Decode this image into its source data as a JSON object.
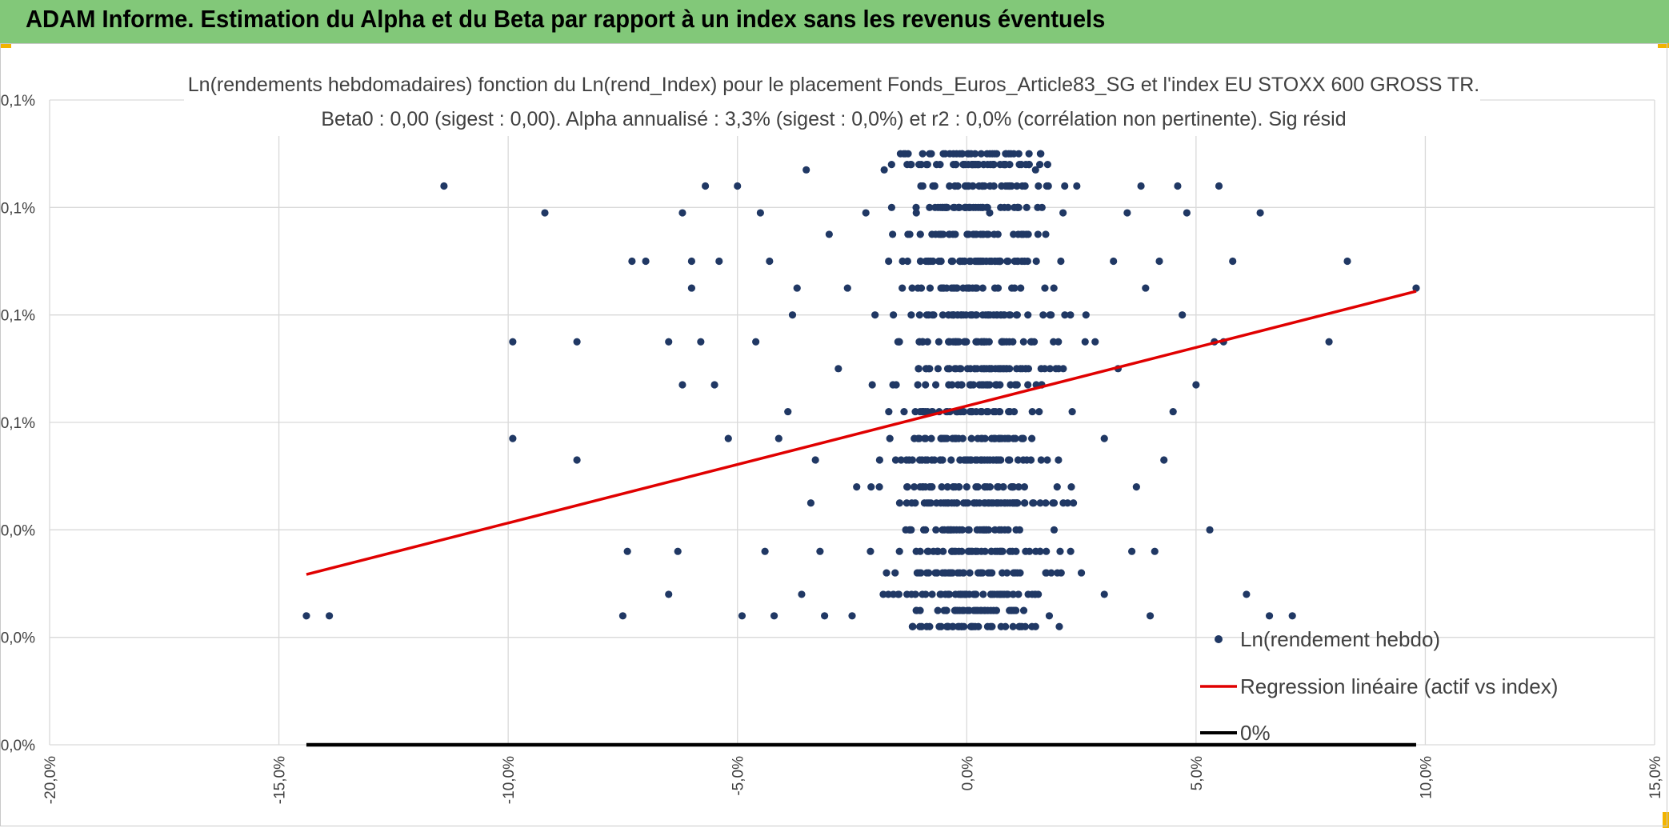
{
  "header": {
    "title": "ADAM Informe. Estimation du Alpha et du Beta par rapport à un index sans les revenus éventuels"
  },
  "colors": {
    "header_bg": "#82c879",
    "accent_corner": "#f2b400",
    "points": "#203864",
    "regression": "#e00000",
    "zero_line": "#000000"
  },
  "chart_data": {
    "type": "scatter",
    "title": "Ln(rendements hebdomadaires) fonction du Ln(rend_Index) pour le placement Fonds_Euros_Article83_SG et l'index EU STOXX 600 GROSS TR.",
    "subtitle": "Beta0 : 0,00 (sigest : 0,00). Alpha annualisé : 3,3% (sigest : 0,0%) et r2 : 0,0% (corrélation non pertinente). Sig résid",
    "xlim": [
      -0.2,
      0.15
    ],
    "ylim": [
      0.0,
      0.0012
    ],
    "x_ticks": [
      "-20,0%",
      "-15,0%",
      "-10,0%",
      "-5,0%",
      "0,0%",
      "5,0%",
      "10,0%",
      "15,0%"
    ],
    "y_ticks": [
      "0,0%",
      "0,0%",
      "0,0%",
      "0,1%",
      "0,1%",
      "0,1%",
      "0,1%"
    ],
    "grid": true,
    "legend_position": "bottom-right",
    "legend": [
      "Ln(rendement hebdo)",
      "Regression linéaire (actif vs index)",
      "0%"
    ],
    "series": [
      {
        "name": "Ln(rendement hebdo)",
        "kind": "scatter",
        "levels": [
          0.00022,
          0.00025,
          0.00028,
          0.00032,
          0.00036,
          0.0004,
          0.00045,
          0.00048,
          0.00053,
          0.00057,
          0.00062,
          0.00067,
          0.0007,
          0.00075,
          0.0008,
          0.00085,
          0.0009,
          0.00095,
          0.001,
          0.00104,
          0.00108,
          0.0011
        ],
        "points": [
          [
            -0.144,
            0.00024
          ],
          [
            -0.139,
            0.00024
          ],
          [
            -0.114,
            0.00104
          ],
          [
            -0.092,
            0.00099
          ],
          [
            -0.099,
            0.00075
          ],
          [
            -0.099,
            0.00057
          ],
          [
            -0.085,
            0.00075
          ],
          [
            -0.085,
            0.00053
          ],
          [
            -0.075,
            0.00024
          ],
          [
            -0.074,
            0.00036
          ],
          [
            -0.073,
            0.0009
          ],
          [
            -0.07,
            0.0009
          ],
          [
            -0.065,
            0.00028
          ],
          [
            -0.065,
            0.00075
          ],
          [
            -0.063,
            0.00036
          ],
          [
            -0.062,
            0.00067
          ],
          [
            -0.062,
            0.00099
          ],
          [
            -0.06,
            0.0009
          ],
          [
            -0.06,
            0.00085
          ],
          [
            -0.058,
            0.00075
          ],
          [
            -0.057,
            0.00104
          ],
          [
            -0.055,
            0.00067
          ],
          [
            -0.054,
            0.0009
          ],
          [
            -0.052,
            0.00057
          ],
          [
            -0.05,
            0.00104
          ],
          [
            -0.049,
            0.00024
          ],
          [
            -0.046,
            0.00075
          ],
          [
            -0.045,
            0.00099
          ],
          [
            -0.044,
            0.00036
          ],
          [
            -0.043,
            0.0009
          ],
          [
            -0.042,
            0.00024
          ],
          [
            -0.041,
            0.00057
          ],
          [
            -0.039,
            0.00062
          ],
          [
            -0.038,
            0.0008
          ],
          [
            -0.037,
            0.00085
          ],
          [
            -0.036,
            0.00028
          ],
          [
            -0.035,
            0.00107
          ],
          [
            -0.034,
            0.00045
          ],
          [
            -0.033,
            0.00053
          ],
          [
            -0.032,
            0.00036
          ],
          [
            -0.031,
            0.00024
          ],
          [
            -0.03,
            0.00095
          ],
          [
            -0.028,
            0.0007
          ],
          [
            -0.026,
            0.00085
          ],
          [
            -0.025,
            0.00024
          ],
          [
            -0.024,
            0.00048
          ],
          [
            -0.022,
            0.00099
          ],
          [
            -0.021,
            0.00036
          ],
          [
            -0.02,
            0.0008
          ],
          [
            -0.019,
            0.00053
          ],
          [
            -0.018,
            0.00107
          ],
          [
            -0.017,
            0.00062
          ],
          [
            -0.016,
            0.00028
          ],
          [
            -0.015,
            0.00075
          ],
          [
            -0.014,
            0.0009
          ],
          [
            -0.012,
            0.00045
          ],
          [
            -0.011,
            0.00099
          ],
          [
            -0.01,
            0.00032
          ],
          [
            -0.009,
            0.00067
          ],
          [
            -0.008,
            0.00085
          ],
          [
            -0.007,
            0.00104
          ],
          [
            -0.006,
            0.00022
          ],
          [
            -0.005,
            0.00057
          ],
          [
            -0.004,
            0.0004
          ],
          [
            -0.003,
            0.00095
          ],
          [
            -0.002,
            0.00075
          ],
          [
            -0.001,
            0.0011
          ],
          [
            0.0,
            0.00048
          ],
          [
            0.001,
            0.00062
          ],
          [
            0.002,
            0.00085
          ],
          [
            0.003,
            0.0009
          ],
          [
            0.004,
            0.00036
          ],
          [
            0.005,
            0.00099
          ],
          [
            0.006,
            0.00028
          ],
          [
            0.007,
            0.00053
          ],
          [
            0.008,
            0.0008
          ],
          [
            0.009,
            0.00104
          ],
          [
            0.01,
            0.00045
          ],
          [
            0.011,
            0.00067
          ],
          [
            0.012,
            0.00022
          ],
          [
            0.013,
            0.00095
          ],
          [
            0.014,
            0.00075
          ],
          [
            0.015,
            0.00107
          ],
          [
            0.016,
            0.00036
          ],
          [
            0.017,
            0.0007
          ],
          [
            0.018,
            0.00024
          ],
          [
            0.019,
            0.00085
          ],
          [
            0.02,
            0.00053
          ],
          [
            0.021,
            0.00099
          ],
          [
            0.022,
            0.00045
          ],
          [
            0.023,
            0.00062
          ],
          [
            0.024,
            0.00104
          ],
          [
            0.025,
            0.00032
          ],
          [
            0.026,
            0.0008
          ],
          [
            0.028,
            0.00075
          ],
          [
            0.03,
            0.00028
          ],
          [
            0.03,
            0.00057
          ],
          [
            0.032,
            0.0009
          ],
          [
            0.033,
            0.0007
          ],
          [
            0.035,
            0.00099
          ],
          [
            0.036,
            0.00036
          ],
          [
            0.037,
            0.00048
          ],
          [
            0.038,
            0.00104
          ],
          [
            0.039,
            0.00085
          ],
          [
            0.04,
            0.00024
          ],
          [
            0.041,
            0.00036
          ],
          [
            0.042,
            0.0009
          ],
          [
            0.043,
            0.00053
          ],
          [
            0.045,
            0.00062
          ],
          [
            0.046,
            0.00104
          ],
          [
            0.047,
            0.0008
          ],
          [
            0.048,
            0.00099
          ],
          [
            0.05,
            0.00067
          ],
          [
            0.053,
            0.0004
          ],
          [
            0.054,
            0.00075
          ],
          [
            0.055,
            0.00104
          ],
          [
            0.056,
            0.00075
          ],
          [
            0.058,
            0.0009
          ],
          [
            0.061,
            0.00028
          ],
          [
            0.064,
            0.00099
          ],
          [
            0.066,
            0.00024
          ],
          [
            0.071,
            0.00024
          ],
          [
            0.079,
            0.00075
          ],
          [
            0.083,
            0.0009
          ],
          [
            0.098,
            0.00085
          ]
        ]
      },
      {
        "name": "Regression linéaire (actif vs index)",
        "kind": "line",
        "x": [
          -0.144,
          0.098
        ],
        "y": [
          0.000317,
          0.000844
        ]
      },
      {
        "name": "0%",
        "kind": "line",
        "x": [
          -0.144,
          0.098
        ],
        "y": [
          0.0,
          0.0
        ]
      }
    ]
  }
}
